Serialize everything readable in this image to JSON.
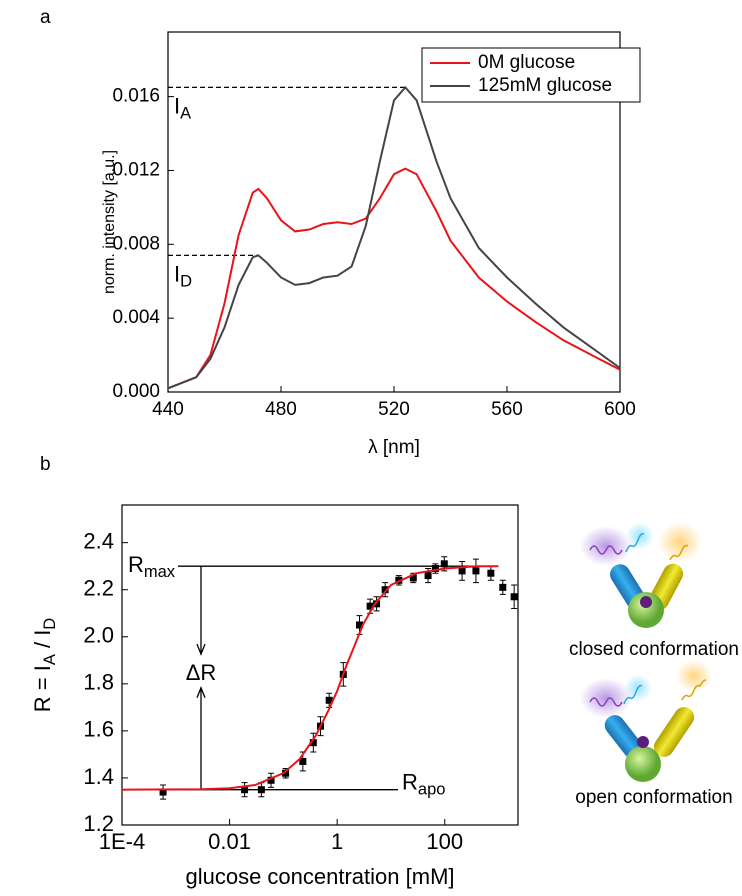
{
  "chart_data": [
    {
      "type": "line",
      "panel": "a",
      "xlabel": "λ [nm]",
      "ylabel": "norm. intensity [a.u.]",
      "xlim": [
        440,
        600
      ],
      "ylim": [
        0,
        0.0195
      ],
      "xticks": [
        440,
        480,
        520,
        560,
        600
      ],
      "yticks": [
        {
          "value": 0,
          "label": "0.000"
        },
        {
          "value": 0.004,
          "label": "0.004"
        },
        {
          "value": 0.008,
          "label": "0.008"
        },
        {
          "value": 0.012,
          "label": "0.012"
        },
        {
          "value": 0.016,
          "label": "0.016"
        }
      ],
      "legend": "upper right",
      "x": [
        440,
        450,
        455,
        460,
        465,
        470,
        472,
        475,
        480,
        485,
        490,
        495,
        500,
        505,
        510,
        515,
        520,
        524,
        528,
        535,
        540,
        550,
        560,
        570,
        580,
        590,
        600
      ],
      "series": [
        {
          "name": "0M glucose",
          "color": "#e8141a",
          "values": [
            0.0002,
            0.0008,
            0.002,
            0.0048,
            0.0085,
            0.0108,
            0.011,
            0.0105,
            0.0093,
            0.0087,
            0.0088,
            0.0091,
            0.0092,
            0.0091,
            0.0094,
            0.0105,
            0.0118,
            0.0121,
            0.0118,
            0.0098,
            0.0082,
            0.0062,
            0.0049,
            0.0038,
            0.0028,
            0.002,
            0.0012
          ]
        },
        {
          "name": "125mM glucose",
          "color": "#444444",
          "values": [
            0.0002,
            0.0008,
            0.0018,
            0.0035,
            0.0058,
            0.0073,
            0.0074,
            0.007,
            0.0062,
            0.0058,
            0.0059,
            0.0062,
            0.0063,
            0.0068,
            0.009,
            0.0125,
            0.0158,
            0.0165,
            0.0158,
            0.0125,
            0.0105,
            0.0078,
            0.0062,
            0.0048,
            0.0035,
            0.0024,
            0.0013
          ]
        }
      ],
      "markers": [
        {
          "value": 0.0165,
          "x_end": 524,
          "label": [
            {
              "text": "I"
            },
            {
              "sub": "A"
            }
          ]
        },
        {
          "value": 0.0074,
          "x_end": 472,
          "label": [
            {
              "text": "I"
            },
            {
              "sub": "D"
            }
          ]
        }
      ]
    },
    {
      "type": "scatter",
      "panel": "b",
      "xlabel": "glucose concentration [mM]",
      "ylabel": [
        {
          "text": "R = I"
        },
        {
          "sub": "A"
        },
        {
          "text": " / I"
        },
        {
          "sub": "D"
        }
      ],
      "xscale": "log",
      "xlim": [
        0.0001,
        2300
      ],
      "ylim": [
        1.2,
        2.56
      ],
      "xticks": [
        {
          "value": 0.0001,
          "label": "1E-4"
        },
        0.01,
        1,
        100
      ],
      "yticks": [
        {
          "value": 1.2,
          "label": "1.2"
        },
        {
          "value": 1.4,
          "label": "1.4"
        },
        {
          "value": 1.6,
          "label": "1.6"
        },
        {
          "value": 1.8,
          "label": "1.8"
        },
        {
          "value": 2.0,
          "label": "2.0"
        },
        {
          "value": 2.2,
          "label": "2.2"
        },
        {
          "value": 2.4,
          "label": "2.4"
        }
      ],
      "series": [
        {
          "type": "scatter",
          "color": "#000000",
          "x": [
            0.00058,
            0.019,
            0.039,
            0.059,
            0.11,
            0.23,
            0.36,
            0.49,
            0.71,
            1.3,
            2.6,
            4.1,
            5.4,
            7.8,
            14,
            26,
            49,
            67,
            98,
            210,
            380,
            720,
            1200,
            1950
          ],
          "values": [
            1.34,
            1.35,
            1.35,
            1.39,
            1.42,
            1.47,
            1.55,
            1.62,
            1.73,
            1.84,
            2.05,
            2.13,
            2.14,
            2.2,
            2.24,
            2.25,
            2.26,
            2.29,
            2.31,
            2.28,
            2.28,
            2.27,
            2.21,
            2.17
          ],
          "errors": [
            0.03,
            0.03,
            0.03,
            0.03,
            0.02,
            0.04,
            0.04,
            0.04,
            0.03,
            0.05,
            0.04,
            0.03,
            0.03,
            0.03,
            0.02,
            0.02,
            0.03,
            0.02,
            0.03,
            0.04,
            0.05,
            0.03,
            0.03,
            0.05
          ]
        },
        {
          "type": "line",
          "color": "#e8141a",
          "x": [
            0.0001,
            0.003,
            0.01,
            0.03,
            0.1,
            0.2,
            0.4,
            0.7,
            1,
            1.5,
            2,
            3,
            5,
            10,
            30,
            100,
            400,
            1000
          ],
          "values": [
            1.35,
            1.352,
            1.356,
            1.37,
            1.42,
            1.48,
            1.58,
            1.69,
            1.77,
            1.88,
            1.95,
            2.05,
            2.14,
            2.22,
            2.27,
            2.29,
            2.3,
            2.3
          ]
        }
      ],
      "reference_lines": [
        {
          "value": 2.3,
          "label": [
            {
              "text": "R"
            },
            {
              "sub": "max"
            }
          ]
        },
        {
          "value": 1.35,
          "label": [
            {
              "text": "R"
            },
            {
              "sub": "apo"
            }
          ]
        }
      ],
      "annotation": "ΔR",
      "side_labels": [
        "closed conformation",
        "open conformation"
      ]
    }
  ]
}
